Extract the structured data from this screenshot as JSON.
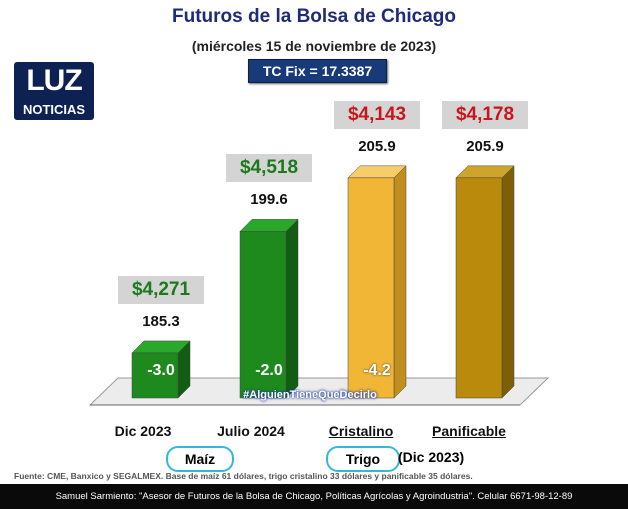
{
  "title": "Futuros de la Bolsa de Chicago",
  "subtitle": "(miércoles 15 de noviembre de 2023)",
  "tc_fix": "TC Fix = 17.3387",
  "logo": {
    "line1": "LUZ",
    "line2": "NOTICIAS"
  },
  "hashtag": "#AlguienTieneQueDecirlo",
  "groups": [
    {
      "label": "Maíz"
    },
    {
      "label": "Trigo",
      "extra": "(Dic 2023)"
    }
  ],
  "note": "Fuente: CME, Banxico y SEGALMEX. Base de maíz 61 dólares, trigo cristalino 33 dólares y panificable 35 dólares.",
  "footer": "Samuel Sarmiento: \"Asesor de Futuros de la Bolsa de Chicago, Políticas Agrícolas y Agroindustria\". Celular 6671-98-12-89",
  "colors": {
    "maiz": "#1e8a1e",
    "cristalino": "#f2b636",
    "panificable": "#b98a0c",
    "price_green": "#1b7a1b",
    "price_red": "#c8161d"
  },
  "chart_data": {
    "type": "bar",
    "categories": [
      "Dic 2023",
      "Julio 2024",
      "Cristalino",
      "Panificable"
    ],
    "values": [
      185.3,
      199.6,
      205.9,
      205.9
    ],
    "value_labels": [
      "185.3",
      "199.6",
      "205.9",
      "205.9"
    ],
    "prices": [
      "$4,271",
      "$4,518",
      "$4,143",
      "$4,178"
    ],
    "changes": [
      "-3.0",
      "-2.0",
      "-4.2",
      ""
    ],
    "title": "Futuros de la Bolsa de Chicago",
    "subtitle": "(miércoles 15 de noviembre de 2023)"
  }
}
